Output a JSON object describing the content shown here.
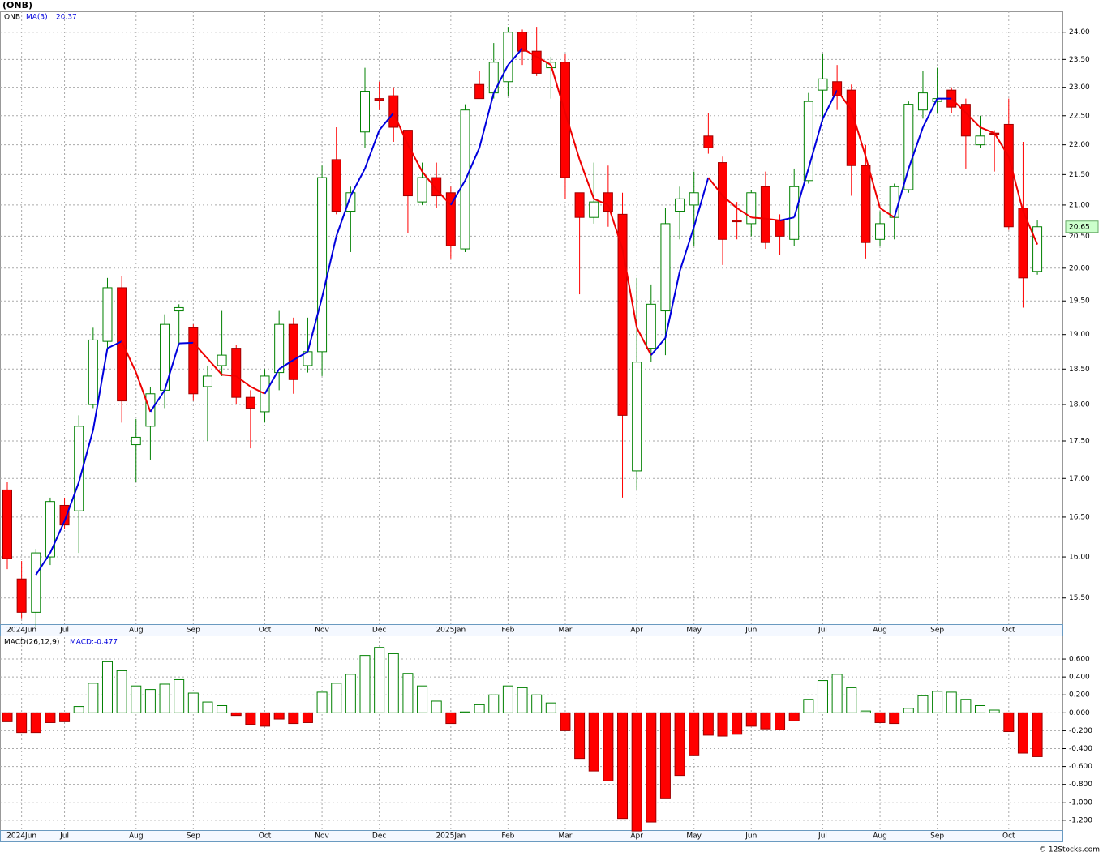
{
  "chart_data": [
    {
      "type": "candlestick",
      "title": "(ONB)",
      "symbol": "ONB",
      "categories": [
        null,
        "2024Jun",
        null,
        null,
        "Jul",
        null,
        null,
        null,
        null,
        "Aug",
        null,
        null,
        null,
        "Sep",
        null,
        null,
        null,
        null,
        "Oct",
        null,
        null,
        null,
        "Nov",
        null,
        null,
        null,
        "Dec",
        null,
        null,
        null,
        null,
        "2025Jan",
        null,
        null,
        null,
        "Feb",
        null,
        null,
        null,
        "Mar",
        null,
        null,
        null,
        null,
        "Apr",
        null,
        null,
        null,
        "May",
        null,
        null,
        null,
        "Jun",
        null,
        null,
        null,
        null,
        "Jul",
        null,
        null,
        null,
        "Aug",
        null,
        null,
        null,
        "Sep",
        null,
        null,
        null,
        null,
        "Oct",
        null,
        null
      ],
      "open": [
        16.85,
        15.73,
        15.33,
        16.0,
        16.65,
        16.58,
        18.0,
        18.9,
        19.7,
        17.45,
        17.7,
        18.2,
        19.35,
        19.1,
        18.25,
        18.55,
        18.8,
        18.1,
        17.9,
        18.45,
        19.15,
        18.55,
        18.75,
        21.75,
        20.9,
        22.22,
        22.8,
        22.85,
        22.25,
        21.05,
        21.45,
        21.2,
        20.3,
        23.05,
        22.9,
        23.1,
        24.0,
        23.65,
        23.35,
        23.45,
        21.2,
        20.8,
        21.2,
        20.85,
        17.1,
        18.8,
        19.35,
        20.9,
        21.0,
        22.15,
        21.7,
        20.75,
        20.7,
        21.3,
        20.75,
        20.45,
        21.4,
        22.95,
        23.1,
        22.95,
        21.65,
        20.45,
        20.8,
        21.25,
        22.6,
        22.75,
        22.95,
        22.7,
        22.0,
        22.2,
        22.35,
        20.95,
        19.95
      ],
      "high": [
        16.95,
        15.95,
        16.1,
        16.75,
        16.75,
        17.85,
        19.1,
        19.85,
        19.88,
        17.8,
        18.25,
        19.3,
        19.45,
        19.15,
        18.55,
        19.35,
        18.85,
        18.2,
        18.5,
        19.35,
        19.25,
        19.25,
        21.65,
        22.3,
        21.3,
        23.35,
        23.1,
        23.0,
        22.25,
        21.7,
        21.7,
        21.3,
        22.7,
        23.3,
        23.8,
        24.1,
        24.05,
        24.1,
        23.55,
        23.6,
        21.2,
        21.7,
        21.65,
        21.2,
        19.85,
        19.75,
        20.95,
        21.3,
        21.55,
        22.55,
        21.8,
        21.05,
        21.25,
        21.55,
        20.85,
        21.6,
        22.9,
        23.6,
        23.4,
        23.05,
        22.0,
        20.9,
        21.35,
        22.75,
        23.3,
        23.35,
        23.0,
        22.8,
        22.5,
        22.25,
        22.8,
        22.05,
        20.75
      ],
      "low": [
        15.85,
        15.25,
        15.15,
        15.9,
        16.35,
        16.05,
        17.95,
        18.8,
        17.75,
        16.95,
        17.25,
        17.95,
        18.85,
        18.05,
        17.5,
        18.4,
        18.0,
        17.4,
        17.75,
        18.2,
        18.15,
        18.45,
        18.4,
        20.85,
        20.25,
        21.95,
        22.6,
        22.05,
        20.55,
        21.0,
        20.95,
        20.15,
        20.25,
        22.8,
        22.8,
        22.85,
        23.4,
        23.2,
        22.8,
        21.1,
        19.6,
        20.7,
        20.65,
        16.75,
        16.85,
        18.6,
        18.7,
        20.45,
        20.35,
        21.85,
        20.05,
        20.45,
        20.5,
        20.3,
        20.2,
        20.35,
        21.35,
        22.4,
        22.6,
        21.15,
        20.15,
        20.35,
        20.45,
        21.2,
        22.45,
        22.55,
        22.55,
        21.6,
        21.95,
        21.55,
        20.6,
        19.4,
        19.9
      ],
      "close": [
        15.98,
        15.33,
        16.05,
        16.7,
        16.4,
        17.7,
        18.92,
        19.7,
        18.05,
        17.55,
        18.15,
        19.15,
        19.4,
        18.15,
        18.4,
        18.7,
        18.1,
        17.95,
        18.4,
        19.15,
        18.35,
        18.75,
        21.45,
        20.9,
        21.2,
        22.93,
        22.77,
        22.3,
        21.15,
        21.45,
        21.15,
        20.35,
        22.6,
        22.8,
        23.45,
        24.0,
        23.65,
        23.25,
        23.45,
        21.45,
        20.8,
        21.05,
        20.9,
        17.85,
        18.6,
        19.45,
        20.7,
        21.1,
        21.2,
        21.95,
        20.45,
        20.73,
        21.2,
        20.4,
        20.5,
        21.3,
        22.75,
        23.15,
        22.85,
        21.65,
        20.4,
        20.7,
        21.3,
        22.7,
        22.9,
        22.8,
        22.65,
        22.15,
        22.15,
        22.18,
        20.65,
        19.85,
        20.65
      ],
      "up_color": "#008000",
      "down_color": "#ff0000",
      "ma": {
        "name": "MA(3)",
        "last": 20.37,
        "up_color": "#0000dd",
        "down_color": "#ee0000",
        "values": [
          null,
          null,
          15.78,
          16.05,
          16.45,
          16.95,
          17.65,
          18.8,
          18.9,
          18.45,
          17.9,
          18.2,
          18.87,
          18.88,
          18.65,
          18.42,
          18.4,
          18.25,
          18.15,
          18.5,
          18.63,
          18.75,
          19.55,
          20.5,
          21.15,
          21.6,
          22.25,
          22.55,
          22.0,
          21.55,
          21.25,
          21.0,
          21.4,
          21.95,
          22.9,
          23.4,
          23.7,
          23.55,
          23.4,
          22.55,
          21.75,
          21.1,
          21.0,
          20.3,
          19.1,
          18.7,
          18.95,
          19.95,
          20.65,
          21.45,
          21.15,
          20.95,
          20.8,
          20.78,
          20.75,
          20.8,
          21.6,
          22.45,
          22.95,
          22.6,
          21.8,
          20.95,
          20.8,
          21.6,
          22.3,
          22.8,
          22.8,
          22.55,
          22.3,
          22.2,
          21.8,
          20.9,
          20.37
        ]
      },
      "last_price": 20.65,
      "last_price_color": "#ccffcc",
      "log_scale": true,
      "grid": true,
      "ylim": [
        15.19,
        24.39
      ],
      "yticks": [
        {
          "value": 24,
          "label": "24.00"
        },
        {
          "value": 23.5,
          "label": "23.50"
        },
        {
          "value": 23,
          "label": "23.00"
        },
        {
          "value": 22.5,
          "label": "22.50"
        },
        {
          "value": 22,
          "label": "22.00"
        },
        {
          "value": 21.5,
          "label": "21.50"
        },
        {
          "value": 21,
          "label": "21.00"
        },
        {
          "value": 20.5,
          "label": "20.50"
        },
        {
          "value": 20,
          "label": "20.00"
        },
        {
          "value": 19.5,
          "label": "19.50"
        },
        {
          "value": 19,
          "label": "19.00"
        },
        {
          "value": 18.5,
          "label": "18.50"
        },
        {
          "value": 18,
          "label": "18.00"
        },
        {
          "value": 17.5,
          "label": "17.50"
        },
        {
          "value": 17,
          "label": "17.00"
        },
        {
          "value": 16.5,
          "label": "16.50"
        },
        {
          "value": 16,
          "label": "16.00"
        },
        {
          "value": 15.5,
          "label": "15.50"
        }
      ]
    },
    {
      "type": "bar",
      "title": "MACD(26,12,9)",
      "value_text": "MACD:-0.477",
      "source": "© 12Stocks.com",
      "categories": [
        null,
        "2024Jun",
        null,
        null,
        "Jul",
        null,
        null,
        null,
        null,
        "Aug",
        null,
        null,
        null,
        "Sep",
        null,
        null,
        null,
        null,
        "Oct",
        null,
        null,
        null,
        "Nov",
        null,
        null,
        null,
        "Dec",
        null,
        null,
        null,
        null,
        "2025Jan",
        null,
        null,
        null,
        "Feb",
        null,
        null,
        null,
        "Mar",
        null,
        null,
        null,
        null,
        "Apr",
        null,
        null,
        null,
        "May",
        null,
        null,
        null,
        "Jun",
        null,
        null,
        null,
        null,
        "Jul",
        null,
        null,
        null,
        "Aug",
        null,
        null,
        null,
        "Sep",
        null,
        null,
        null,
        null,
        "Oct",
        null,
        null
      ],
      "values": [
        -0.1,
        -0.22,
        -0.22,
        -0.11,
        -0.1,
        0.07,
        0.33,
        0.57,
        0.47,
        0.3,
        0.26,
        0.32,
        0.37,
        0.22,
        0.12,
        0.08,
        -0.03,
        -0.13,
        -0.15,
        -0.07,
        -0.12,
        -0.11,
        0.23,
        0.33,
        0.43,
        0.64,
        0.73,
        0.66,
        0.44,
        0.3,
        0.13,
        -0.12,
        0.01,
        0.09,
        0.2,
        0.3,
        0.28,
        0.2,
        0.11,
        -0.2,
        -0.51,
        -0.65,
        -0.76,
        -1.18,
        -1.32,
        -1.22,
        -0.96,
        -0.7,
        -0.48,
        -0.25,
        -0.26,
        -0.24,
        -0.15,
        -0.18,
        -0.19,
        -0.09,
        0.15,
        0.36,
        0.43,
        0.28,
        0.02,
        -0.11,
        -0.12,
        0.05,
        0.19,
        0.24,
        0.23,
        0.15,
        0.08,
        0.03,
        -0.21,
        -0.45,
        -0.49
      ],
      "up_color": "#008000",
      "down_color": "#ff0000",
      "grid": true,
      "ylim": [
        -1.31,
        0.845
      ],
      "yticks": [
        {
          "value": 0.6,
          "label": "0.600"
        },
        {
          "value": 0.4,
          "label": "0.400"
        },
        {
          "value": 0.2,
          "label": "0.200"
        },
        {
          "value": 0,
          "label": "0.000"
        },
        {
          "value": -0.2,
          "label": "-0.200"
        },
        {
          "value": -0.4,
          "label": "-0.400"
        },
        {
          "value": -0.6,
          "label": "-0.600"
        },
        {
          "value": -0.8,
          "label": "-0.800"
        },
        {
          "value": -1,
          "label": "-1.000"
        },
        {
          "value": -1.2,
          "label": "-1.200"
        }
      ]
    }
  ]
}
